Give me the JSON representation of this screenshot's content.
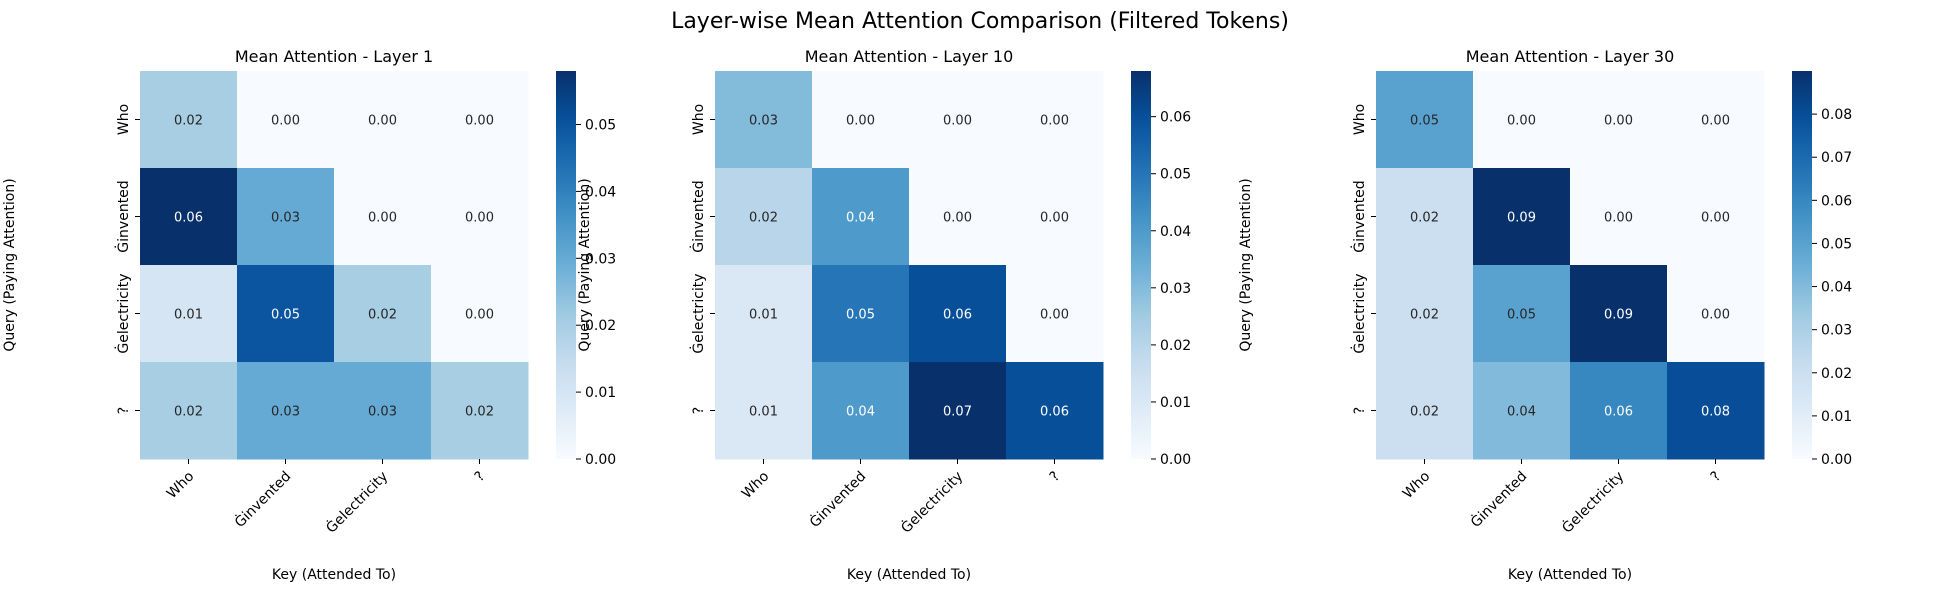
{
  "figure": {
    "title": "Layer-wise Mean Attention Comparison (Filtered Tokens)"
  },
  "colormap": {
    "name": "Blues",
    "stops": [
      "#f7fbff",
      "#deebf7",
      "#c6dbef",
      "#9ecae1",
      "#6baed6",
      "#4292c6",
      "#2171b5",
      "#08519c",
      "#08306b"
    ]
  },
  "chart_data": [
    {
      "type": "heatmap",
      "title": "Mean Attention - Layer 1",
      "xlabel": "Key (Attended To)",
      "ylabel": "Query (Paying Attention)",
      "x_categories": [
        "Who",
        "Ġinvented",
        "Ġelectricity",
        "?"
      ],
      "y_categories": [
        "Who",
        "Ġinvented",
        "Ġelectricity",
        "?"
      ],
      "values": [
        [
          0.02,
          0.0,
          0.0,
          0.0
        ],
        [
          0.06,
          0.03,
          0.0,
          0.0
        ],
        [
          0.01,
          0.05,
          0.02,
          0.0
        ],
        [
          0.02,
          0.03,
          0.03,
          0.02
        ]
      ],
      "value_labels": [
        [
          "0.02",
          "0.00",
          "0.00",
          "0.00"
        ],
        [
          "0.06",
          "0.03",
          "0.00",
          "0.00"
        ],
        [
          "0.01",
          "0.05",
          "0.02",
          "0.00"
        ],
        [
          "0.02",
          "0.03",
          "0.03",
          "0.02"
        ]
      ],
      "colorbar": {
        "range": [
          0,
          0.058
        ],
        "ticks": [
          "0.00",
          "0.01",
          "0.02",
          "0.03",
          "0.04",
          "0.05"
        ]
      }
    },
    {
      "type": "heatmap",
      "title": "Mean Attention - Layer 10",
      "xlabel": "Key (Attended To)",
      "ylabel": "Query (Paying Attention)",
      "x_categories": [
        "Who",
        "Ġinvented",
        "Ġelectricity",
        "?"
      ],
      "y_categories": [
        "Who",
        "Ġinvented",
        "Ġelectricity",
        "?"
      ],
      "values": [
        [
          0.03,
          0.0,
          0.0,
          0.0
        ],
        [
          0.02,
          0.04,
          0.0,
          0.0
        ],
        [
          0.01,
          0.05,
          0.06,
          0.0
        ],
        [
          0.01,
          0.04,
          0.07,
          0.06
        ]
      ],
      "value_labels": [
        [
          "0.03",
          "0.00",
          "0.00",
          "0.00"
        ],
        [
          "0.02",
          "0.04",
          "0.00",
          "0.00"
        ],
        [
          "0.01",
          "0.05",
          "0.06",
          "0.00"
        ],
        [
          "0.01",
          "0.04",
          "0.07",
          "0.06"
        ]
      ],
      "colorbar": {
        "range": [
          0,
          0.068
        ],
        "ticks": [
          "0.00",
          "0.01",
          "0.02",
          "0.03",
          "0.04",
          "0.05",
          "0.06"
        ]
      }
    },
    {
      "type": "heatmap",
      "title": "Mean Attention - Layer 30",
      "xlabel": "Key (Attended To)",
      "ylabel": "Query (Paying Attention)",
      "x_categories": [
        "Who",
        "Ġinvented",
        "Ġelectricity",
        "?"
      ],
      "y_categories": [
        "Who",
        "Ġinvented",
        "Ġelectricity",
        "?"
      ],
      "values": [
        [
          0.05,
          0.0,
          0.0,
          0.0
        ],
        [
          0.02,
          0.09,
          0.0,
          0.0
        ],
        [
          0.02,
          0.05,
          0.09,
          0.0
        ],
        [
          0.02,
          0.04,
          0.06,
          0.08
        ]
      ],
      "value_labels": [
        [
          "0.05",
          "0.00",
          "0.00",
          "0.00"
        ],
        [
          "0.02",
          "0.09",
          "0.00",
          "0.00"
        ],
        [
          "0.02",
          "0.05",
          "0.09",
          "0.00"
        ],
        [
          "0.02",
          "0.04",
          "0.06",
          "0.08"
        ]
      ],
      "colorbar": {
        "range": [
          0,
          0.09
        ],
        "ticks": [
          "0.00",
          "0.01",
          "0.02",
          "0.03",
          "0.04",
          "0.05",
          "0.06",
          "0.07",
          "0.08"
        ]
      }
    }
  ]
}
